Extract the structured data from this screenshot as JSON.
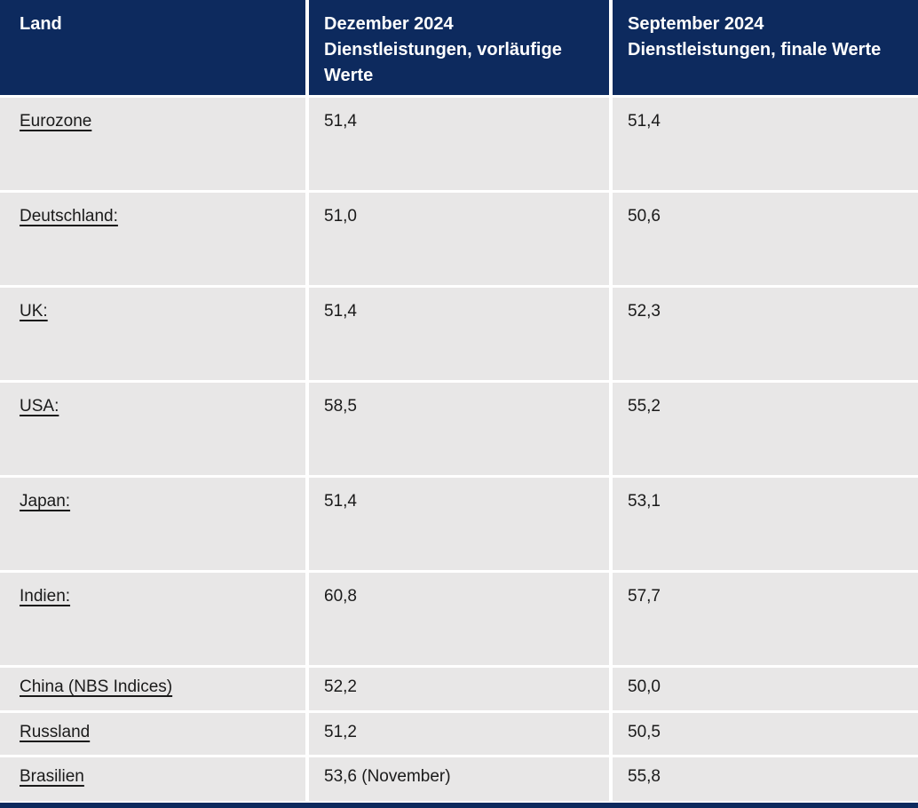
{
  "colors": {
    "header_bg": "#0d2a5e",
    "row_bg": "#e8e7e7",
    "header_text": "#ffffff",
    "body_text": "#1a1a1a",
    "gutter": "#ffffff"
  },
  "table": {
    "header": {
      "col1": "Land",
      "col2": "Dezember 2024\nDienstleistungen, vorläufige Werte",
      "col3": "September 2024\nDienstleistungen, finale Werte"
    },
    "rows": [
      {
        "land": "Eurozone",
        "dec": "51,4",
        "sep": "51,4"
      },
      {
        "land": "Deutschland:",
        "dec": "51,0",
        "sep": "50,6"
      },
      {
        "land": "UK:",
        "dec": "51,4",
        "sep": "52,3"
      },
      {
        "land": "USA:",
        "dec": "58,5",
        "sep": "55,2"
      },
      {
        "land": "Japan:",
        "dec": "51,4",
        "sep": "53,1"
      },
      {
        "land": "Indien:",
        "dec": "60,8",
        "sep": "57,7"
      },
      {
        "land": "China (NBS Indices)",
        "dec": "52,2",
        "sep": "50,0"
      },
      {
        "land": "Russland",
        "dec": "51,2",
        "sep": "50,5"
      },
      {
        "land": "Brasilien",
        "dec": "53,6 (November)",
        "sep": "55,8"
      }
    ]
  },
  "chart_data": {
    "type": "table",
    "columns": [
      "Land",
      "Dezember 2024 Dienstleistungen, vorläufige Werte",
      "September 2024 Dienstleistungen, finale Werte"
    ],
    "categories": [
      "Eurozone",
      "Deutschland",
      "UK",
      "USA",
      "Japan",
      "Indien",
      "China (NBS Indices)",
      "Russland",
      "Brasilien"
    ],
    "series": [
      {
        "name": "Dezember 2024 Dienstleistungen, vorläufige Werte",
        "values": [
          51.4,
          51.0,
          51.4,
          58.5,
          51.4,
          60.8,
          52.2,
          51.2,
          53.6
        ]
      },
      {
        "name": "September 2024 Dienstleistungen, finale Werte",
        "values": [
          51.4,
          50.6,
          52.3,
          55.2,
          53.1,
          57.7,
          50.0,
          50.5,
          55.8
        ]
      }
    ],
    "annotations": [
      "Brasilien Dezember-Spalte zeigt 53,6 (November)"
    ]
  }
}
